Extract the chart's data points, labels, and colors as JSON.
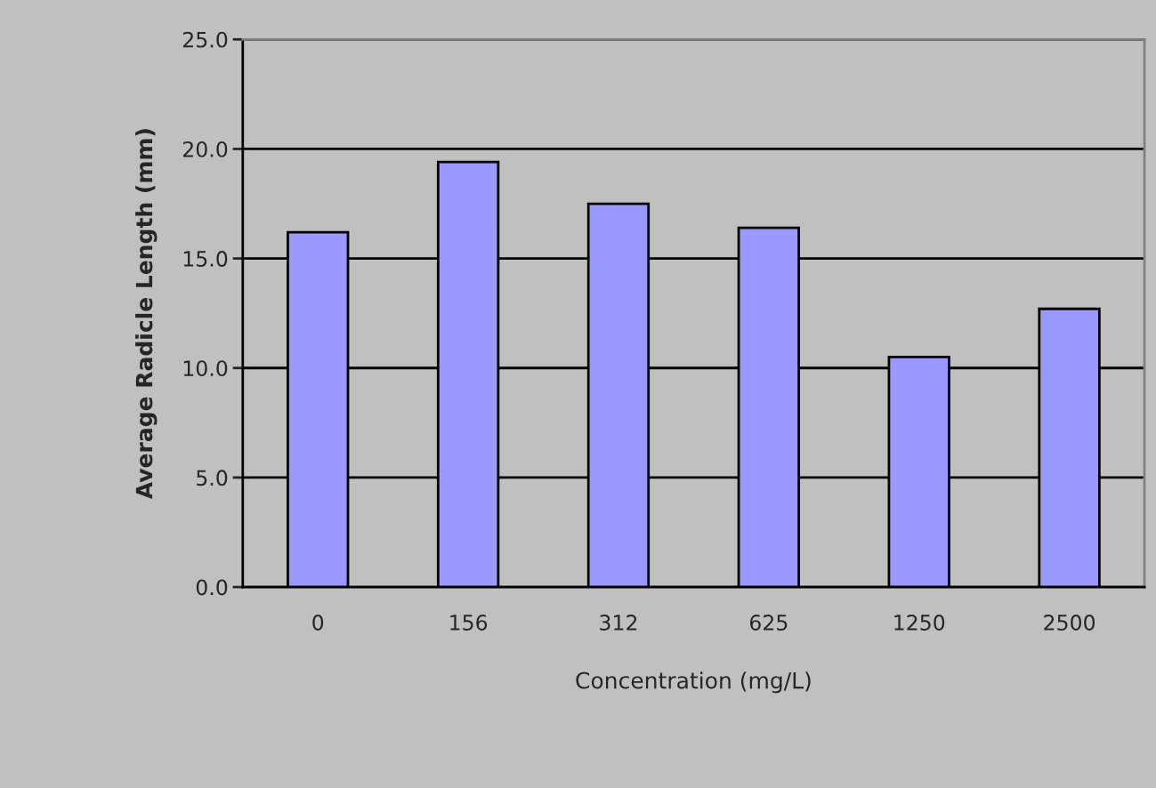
{
  "chart_data": {
    "type": "bar",
    "xlabel": "Concentration (mg/L)",
    "ylabel": "Average Radicle Length (mm)",
    "categories": [
      "0",
      "156",
      "312",
      "625",
      "1250",
      "2500"
    ],
    "values": [
      16.2,
      19.4,
      17.5,
      16.4,
      10.5,
      12.7
    ],
    "color": "#9999ff",
    "ylim": [
      0,
      25
    ],
    "yticks": [
      {
        "value": 0,
        "label": "0.0"
      },
      {
        "value": 5,
        "label": "5.0"
      },
      {
        "value": 10,
        "label": "10.0"
      },
      {
        "value": 15,
        "label": "15.0"
      },
      {
        "value": 20,
        "label": "20.0"
      },
      {
        "value": 25,
        "label": "25.0"
      }
    ],
    "grid": "y",
    "legend": false
  }
}
